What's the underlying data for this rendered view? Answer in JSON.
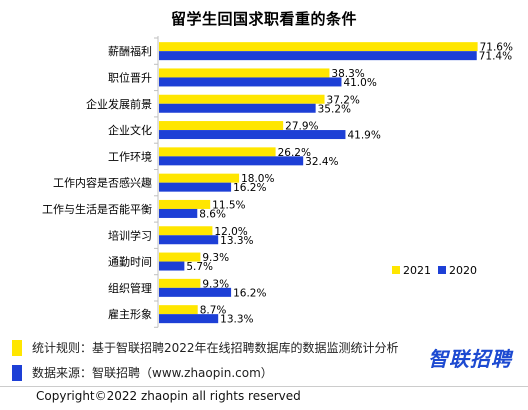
{
  "colors": {
    "series_2021": "#ffe600",
    "series_2020": "#1d3fd6",
    "axis": "#bfbfbf"
  },
  "chart_data": {
    "type": "bar",
    "orientation": "horizontal",
    "title": "留学生回国求职看重的条件",
    "categories": [
      "薪酬福利",
      "职位晋升",
      "企业发展前景",
      "企业文化",
      "工作环境",
      "工作内容是否感兴趣",
      "工作与生活是否能平衡",
      "培训学习",
      "通勤时间",
      "组织管理",
      "雇主形象"
    ],
    "series": [
      {
        "name": "2021",
        "values": [
          71.6,
          38.3,
          37.2,
          27.9,
          26.2,
          18.0,
          11.5,
          12.0,
          9.3,
          9.3,
          8.7
        ],
        "labels": [
          "71.6%",
          "38.3%",
          "37.2%",
          "27.9%",
          "26.2%",
          "18.0%",
          "11.5%",
          "12.0%",
          "9.3%",
          "9.3%",
          "8.7%"
        ]
      },
      {
        "name": "2020",
        "values": [
          71.4,
          41.0,
          35.2,
          41.9,
          32.4,
          16.2,
          8.6,
          13.3,
          5.7,
          16.2,
          13.3
        ],
        "labels": [
          "71.4%",
          "41.0%",
          "35.2%",
          "41.9%",
          "32.4%",
          "16.2%",
          "8.6%",
          "13.3%",
          "5.7%",
          "16.2%",
          "13.3%"
        ]
      }
    ],
    "legend_position": "bottom-right",
    "grid": false
  },
  "footnotes": {
    "rule": "统计规则：基于智联招聘2022年在线招聘数据库的数据监测统计分析",
    "source": "数据来源：智联招聘（www.zhaopin.com）"
  },
  "brand": "智联招聘",
  "copyright": "Copyright©2022 zhaopin all rights reserved"
}
